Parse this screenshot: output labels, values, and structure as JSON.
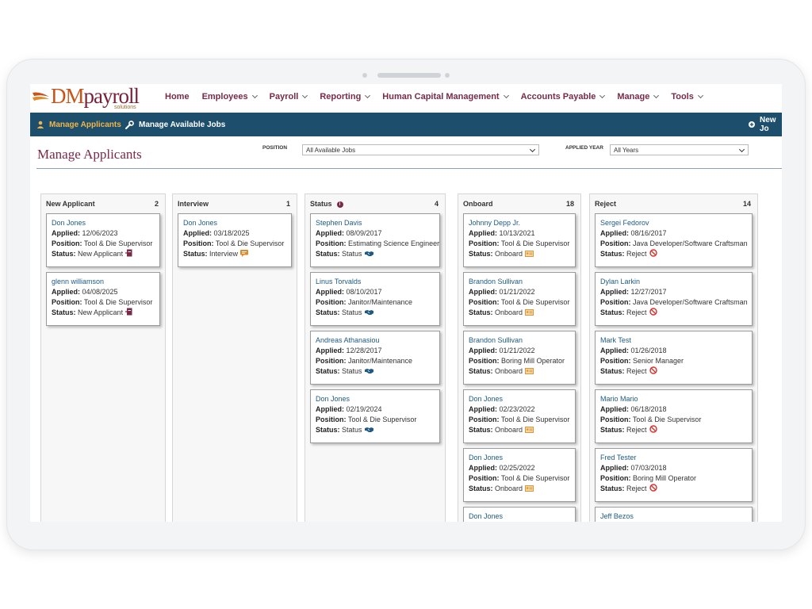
{
  "logo": {
    "text_dm": "DM",
    "text_payroll": "payroll",
    "subtext": "solutions"
  },
  "nav": [
    {
      "label": "Home",
      "dropdown": false
    },
    {
      "label": "Employees",
      "dropdown": true
    },
    {
      "label": "Payroll",
      "dropdown": true
    },
    {
      "label": "Reporting",
      "dropdown": true
    },
    {
      "label": "Human Capital Management",
      "dropdown": true
    },
    {
      "label": "Accounts Payable",
      "dropdown": true
    },
    {
      "label": "Manage",
      "dropdown": true
    },
    {
      "label": "Tools",
      "dropdown": true
    }
  ],
  "subnav": {
    "manage_applicants": "Manage Applicants",
    "manage_jobs": "Manage Available Jobs",
    "new_job": "New Jo"
  },
  "page": {
    "title": "Manage Applicants",
    "position_label": "POSITION",
    "position_value": "All Available Jobs",
    "year_label": "APPLIED YEAR",
    "year_value": "All Years"
  },
  "labels": {
    "applied": "Applied:",
    "position": "Position:",
    "status": "Status:"
  },
  "colors": {
    "brand": "#7a2a48",
    "accent": "#c9541a",
    "subbar": "#1d4f6c",
    "link": "#1d5a85",
    "reject": "#d9302c",
    "onboard": "#d9963a"
  },
  "columns": [
    {
      "title": "New Applicant",
      "count": "2",
      "info": false,
      "status_icon": "new-applicant-icon",
      "cards": [
        {
          "name": "Don Jones",
          "applied": "12/06/2023",
          "position": "Tool & Die Supervisor",
          "status": "New Applicant"
        },
        {
          "name": "glenn williamson",
          "applied": "04/08/2025",
          "position": "Tool & Die Supervisor",
          "status": "New Applicant"
        }
      ]
    },
    {
      "title": "Interview",
      "count": "1",
      "info": false,
      "status_icon": "interview-chat-icon",
      "cards": [
        {
          "name": "Don Jones",
          "applied": "03/18/2025",
          "position": "Tool & Die Supervisor",
          "status": "Interview"
        }
      ]
    },
    {
      "title": "Status",
      "count": "4",
      "info": true,
      "status_icon": "handshake-icon",
      "cards": [
        {
          "name": "Stephen Davis",
          "applied": "08/09/2017",
          "position": "Estimating Science Engineer",
          "status": "Status"
        },
        {
          "name": "Linus Torvalds",
          "applied": "08/10/2017",
          "position": "Janitor/Maintenance",
          "status": "Status"
        },
        {
          "name": "Andreas Athanasiou",
          "applied": "12/28/2017",
          "position": "Janitor/Maintenance",
          "status": "Status"
        },
        {
          "name": "Don Jones",
          "applied": "02/19/2024",
          "position": "Tool & Die Supervisor",
          "status": "Status"
        }
      ]
    },
    {
      "title": "Onboard",
      "count": "18",
      "info": false,
      "status_icon": "id-card-icon",
      "cards": [
        {
          "name": "Johnny Depp Jr.",
          "applied": "10/13/2021",
          "position": "Tool & Die Supervisor",
          "status": "Onboard"
        },
        {
          "name": "Brandon Sullivan",
          "applied": "01/21/2022",
          "position": "Tool & Die Supervisor",
          "status": "Onboard"
        },
        {
          "name": "Brandon Sullivan",
          "applied": "01/21/2022",
          "position": "Boring Mill Operator",
          "status": "Onboard"
        },
        {
          "name": "Don Jones",
          "applied": "02/23/2022",
          "position": "Tool & Die Supervisor",
          "status": "Onboard"
        },
        {
          "name": "Don Jones",
          "applied": "02/25/2022",
          "position": "Tool & Die Supervisor",
          "status": "Onboard"
        },
        {
          "name": "Don Jones",
          "applied": "",
          "position": "",
          "status": ""
        }
      ]
    },
    {
      "title": "Reject",
      "count": "14",
      "info": false,
      "status_icon": "reject-icon",
      "cards": [
        {
          "name": "Sergei Fedorov",
          "applied": "08/16/2017",
          "position": "Java Developer/Software Craftsman",
          "status": "Reject"
        },
        {
          "name": "Dylan Larkin",
          "applied": "12/27/2017",
          "position": "Java Developer/Software Craftsman",
          "status": "Reject"
        },
        {
          "name": "Mark Test",
          "applied": "01/26/2018",
          "position": "Senior Manager",
          "status": "Reject"
        },
        {
          "name": "Mario Mario",
          "applied": "06/18/2018",
          "position": "Tool & Die Supervisor",
          "status": "Reject"
        },
        {
          "name": "Fred Tester",
          "applied": "07/03/2018",
          "position": "Boring Mill Operator",
          "status": "Reject"
        },
        {
          "name": "Jeff Bezos",
          "applied": "",
          "position": "",
          "status": ""
        }
      ]
    }
  ]
}
